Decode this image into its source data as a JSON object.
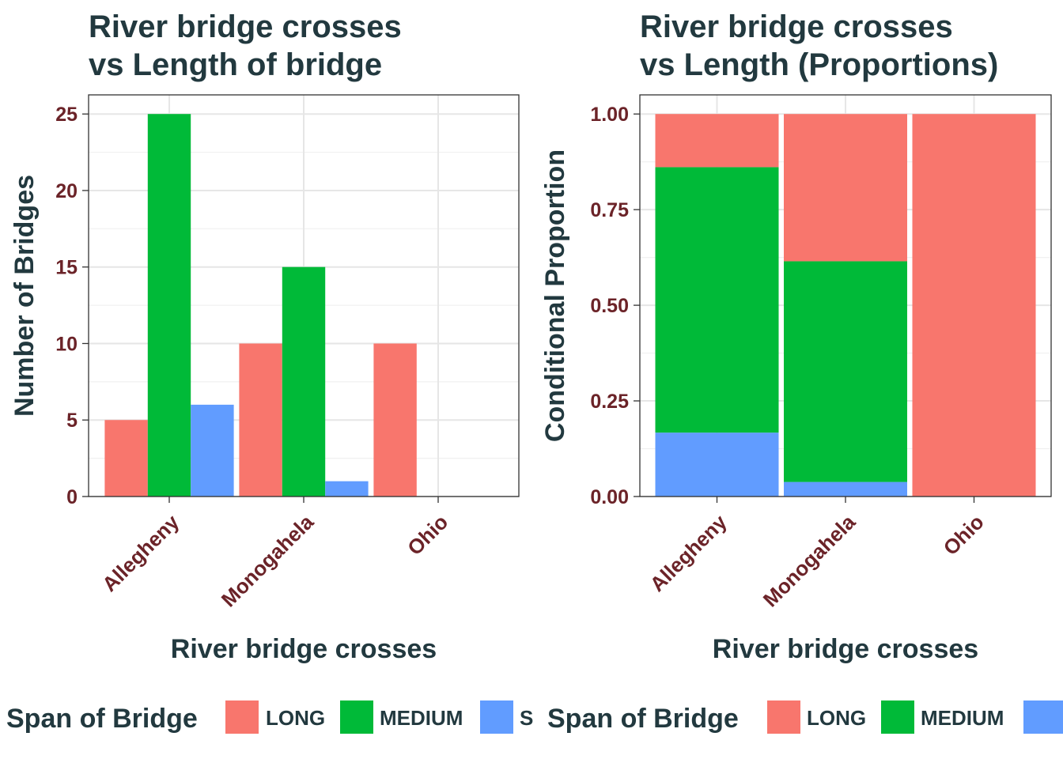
{
  "chart_data": [
    {
      "type": "bar",
      "title": [
        "River bridge crosses",
        "vs Length of bridge"
      ],
      "xlabel": "River bridge crosses",
      "ylabel": "Number of Bridges",
      "categories": [
        "Allegheny",
        "Monogahela",
        "Ohio"
      ],
      "series": [
        {
          "name": "LONG",
          "color": "#F8766D",
          "values": [
            5,
            10,
            10
          ]
        },
        {
          "name": "MEDIUM",
          "color": "#00BA38",
          "values": [
            25,
            15,
            0
          ]
        },
        {
          "name": "SHORT",
          "color": "#619CFF",
          "values": [
            6,
            1,
            0
          ]
        }
      ],
      "ylim": [
        0,
        26.25
      ],
      "yticks": [
        0,
        5,
        10,
        15,
        20,
        25
      ],
      "ytick_labels": [
        "0",
        "5",
        "10",
        "15",
        "20",
        "25"
      ],
      "grid": true,
      "legend": {
        "title": "Span of Bridge",
        "position": "bottom",
        "visible_labels": [
          "LONG",
          "MEDIUM",
          "S"
        ]
      }
    },
    {
      "type": "bar",
      "stacked": "fill",
      "title": [
        "River bridge crosses",
        "vs Length (Proportions)"
      ],
      "xlabel": "River bridge crosses",
      "ylabel": "Conditional Proportion",
      "categories": [
        "Allegheny",
        "Monogahela",
        "Ohio"
      ],
      "series": [
        {
          "name": "SHORT",
          "color": "#619CFF",
          "values": [
            0.167,
            0.038,
            0
          ]
        },
        {
          "name": "MEDIUM",
          "color": "#00BA38",
          "values": [
            0.694,
            0.577,
            0
          ]
        },
        {
          "name": "LONG",
          "color": "#F8766D",
          "values": [
            0.139,
            0.385,
            1.0
          ]
        }
      ],
      "ylim": [
        0,
        1.05
      ],
      "yticks": [
        0,
        0.25,
        0.5,
        0.75,
        1.0
      ],
      "ytick_labels": [
        "0.00",
        "0.25",
        "0.50",
        "0.75",
        "1.00"
      ],
      "grid": true,
      "legend": {
        "title": "Span of Bridge",
        "position": "bottom",
        "visible_labels": [
          "LONG",
          "MEDIUM",
          ""
        ]
      }
    }
  ]
}
